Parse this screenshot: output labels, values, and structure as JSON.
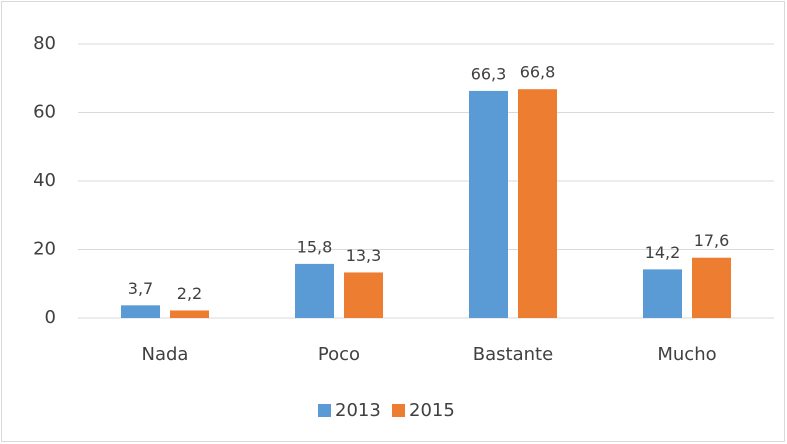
{
  "chart_data": {
    "type": "bar",
    "categories": [
      "Nada",
      "Poco",
      "Bastante",
      "Mucho"
    ],
    "series": [
      {
        "name": "2013",
        "color": "#5b9bd5",
        "values": [
          3.7,
          15.8,
          66.3,
          14.2
        ],
        "value_labels": [
          "3,7",
          "15,8",
          "66,3",
          "14,2"
        ]
      },
      {
        "name": "2015",
        "color": "#ed7d31",
        "values": [
          2.2,
          13.3,
          66.8,
          17.6
        ],
        "value_labels": [
          "2,2",
          "13,3",
          "66,8",
          "17,6"
        ]
      }
    ],
    "ylim": [
      0,
      80
    ],
    "yticks": [
      0,
      20,
      40,
      60,
      80
    ],
    "grid": true,
    "legend": "bottom"
  }
}
